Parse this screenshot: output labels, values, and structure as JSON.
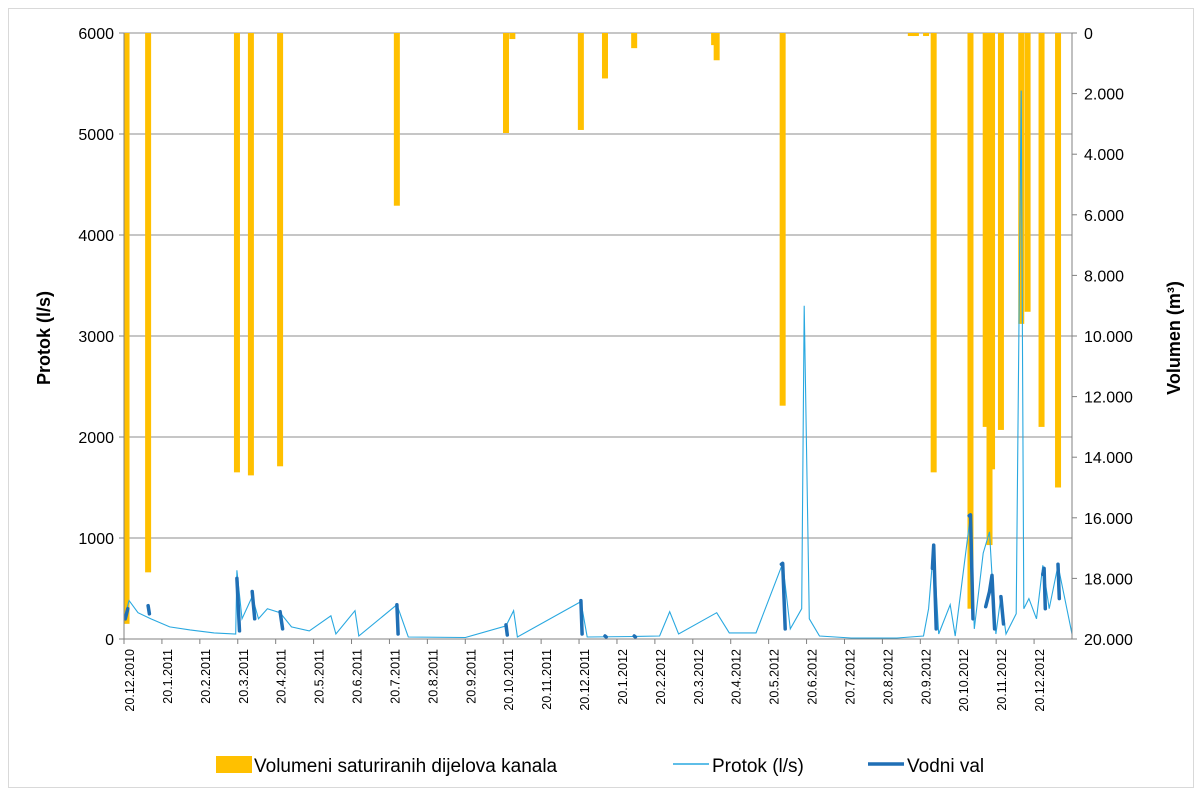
{
  "chart_data": {
    "type": "bar",
    "title": "",
    "ylabel_left": "Protok (l/s)",
    "ylabel_right": "Volumen (m³)",
    "ylim_left": [
      0,
      6000
    ],
    "ylim_right_inverted": [
      0,
      20000
    ],
    "y_left_ticks": [
      "0",
      "1000",
      "2000",
      "3000",
      "4000",
      "5000",
      "6000"
    ],
    "y_right_ticks": [
      "0",
      "2.000",
      "4.000",
      "6.000",
      "8.000",
      "10.000",
      "12.000",
      "14.000",
      "16.000",
      "18.000",
      "20.000"
    ],
    "x_start": "2010-12-20",
    "x_end": "2013-01-05",
    "x_ticks": [
      "20.12.2010",
      "20.1.2011",
      "20.2.2011",
      "20.3.2011",
      "20.4.2011",
      "20.5.2011",
      "20.6.2011",
      "20.7.2011",
      "20.8.2011",
      "20.9.2011",
      "20.10.2011",
      "20.11.2011",
      "20.12.2011",
      "20.1.2012",
      "20.2.2012",
      "20.3.2012",
      "20.4.2012",
      "20.5.2012",
      "20.6.2012",
      "20.7.2012",
      "20.8.2012",
      "20.9.2012",
      "20.10.2012",
      "20.11.2012",
      "20.12.2012"
    ],
    "grid": true,
    "legend_position": "bottom",
    "colors": {
      "volumes": "#ffc000",
      "protok": "#29a8e0",
      "vodni_val": "#1f6fb5",
      "grid": "#8c8c8c",
      "axis": "#808080"
    },
    "series": [
      {
        "name": "Volumeni saturiranih dijelova kanala",
        "type": "bar",
        "axis": "right",
        "data": [
          {
            "date": "2010-12-22",
            "value": 19500
          },
          {
            "date": "2011-01-08",
            "value": 17800
          },
          {
            "date": "2011-03-19",
            "value": 14500
          },
          {
            "date": "2011-03-30",
            "value": 14600
          },
          {
            "date": "2011-04-22",
            "value": 14300
          },
          {
            "date": "2011-07-23",
            "value": 5700
          },
          {
            "date": "2011-10-17",
            "value": 3300
          },
          {
            "date": "2011-10-22",
            "value": 200
          },
          {
            "date": "2011-12-15",
            "value": 3200
          },
          {
            "date": "2012-01-03",
            "value": 1500
          },
          {
            "date": "2012-01-26",
            "value": 500
          },
          {
            "date": "2012-03-29",
            "value": 400
          },
          {
            "date": "2012-03-31",
            "value": 900
          },
          {
            "date": "2012-05-22",
            "value": 12300
          },
          {
            "date": "2012-08-31",
            "value": 100
          },
          {
            "date": "2012-09-04",
            "value": 100
          },
          {
            "date": "2012-09-12",
            "value": 100
          },
          {
            "date": "2012-09-18",
            "value": 14500
          },
          {
            "date": "2012-10-17",
            "value": 19000
          },
          {
            "date": "2012-10-29",
            "value": 13000
          },
          {
            "date": "2012-11-01",
            "value": 16900
          },
          {
            "date": "2012-11-03",
            "value": 14400
          },
          {
            "date": "2012-11-10",
            "value": 13100
          },
          {
            "date": "2012-11-26",
            "value": 9600
          },
          {
            "date": "2012-12-01",
            "value": 9200
          },
          {
            "date": "2012-12-12",
            "value": 13000
          },
          {
            "date": "2012-12-25",
            "value": 15000
          }
        ]
      },
      {
        "name": "Protok (l/s)",
        "type": "line",
        "axis": "left",
        "data": [
          {
            "date": "2010-12-20",
            "value": 200
          },
          {
            "date": "2010-12-24",
            "value": 380
          },
          {
            "date": "2010-12-31",
            "value": 260
          },
          {
            "date": "2011-01-10",
            "value": 200
          },
          {
            "date": "2011-01-25",
            "value": 120
          },
          {
            "date": "2011-02-10",
            "value": 90
          },
          {
            "date": "2011-03-01",
            "value": 60
          },
          {
            "date": "2011-03-18",
            "value": 50
          },
          {
            "date": "2011-03-19",
            "value": 680
          },
          {
            "date": "2011-03-23",
            "value": 200
          },
          {
            "date": "2011-03-31",
            "value": 420
          },
          {
            "date": "2011-04-05",
            "value": 200
          },
          {
            "date": "2011-04-12",
            "value": 300
          },
          {
            "date": "2011-04-22",
            "value": 260
          },
          {
            "date": "2011-05-01",
            "value": 120
          },
          {
            "date": "2011-05-15",
            "value": 80
          },
          {
            "date": "2011-06-01",
            "value": 230
          },
          {
            "date": "2011-06-05",
            "value": 50
          },
          {
            "date": "2011-06-20",
            "value": 280
          },
          {
            "date": "2011-06-23",
            "value": 30
          },
          {
            "date": "2011-07-23",
            "value": 340
          },
          {
            "date": "2011-08-01",
            "value": 20
          },
          {
            "date": "2011-09-15",
            "value": 15
          },
          {
            "date": "2011-10-17",
            "value": 130
          },
          {
            "date": "2011-10-23",
            "value": 280
          },
          {
            "date": "2011-10-26",
            "value": 20
          },
          {
            "date": "2011-12-15",
            "value": 370
          },
          {
            "date": "2011-12-20",
            "value": 20
          },
          {
            "date": "2012-01-26",
            "value": 25
          },
          {
            "date": "2012-02-15",
            "value": 30
          },
          {
            "date": "2012-02-23",
            "value": 270
          },
          {
            "date": "2012-03-01",
            "value": 50
          },
          {
            "date": "2012-03-31",
            "value": 260
          },
          {
            "date": "2012-04-10",
            "value": 60
          },
          {
            "date": "2012-05-01",
            "value": 60
          },
          {
            "date": "2012-05-22",
            "value": 750
          },
          {
            "date": "2012-05-28",
            "value": 100
          },
          {
            "date": "2012-06-06",
            "value": 300
          },
          {
            "date": "2012-06-08",
            "value": 3300
          },
          {
            "date": "2012-06-12",
            "value": 200
          },
          {
            "date": "2012-06-20",
            "value": 30
          },
          {
            "date": "2012-07-15",
            "value": 10
          },
          {
            "date": "2012-08-20",
            "value": 10
          },
          {
            "date": "2012-09-10",
            "value": 30
          },
          {
            "date": "2012-09-14",
            "value": 300
          },
          {
            "date": "2012-09-18",
            "value": 920
          },
          {
            "date": "2012-09-22",
            "value": 50
          },
          {
            "date": "2012-10-01",
            "value": 340
          },
          {
            "date": "2012-10-05",
            "value": 30
          },
          {
            "date": "2012-10-17",
            "value": 1230
          },
          {
            "date": "2012-10-20",
            "value": 100
          },
          {
            "date": "2012-10-27",
            "value": 850
          },
          {
            "date": "2012-11-01",
            "value": 1060
          },
          {
            "date": "2012-11-03",
            "value": 630
          },
          {
            "date": "2012-11-06",
            "value": 50
          },
          {
            "date": "2012-11-10",
            "value": 420
          },
          {
            "date": "2012-11-14",
            "value": 50
          },
          {
            "date": "2012-11-22",
            "value": 250
          },
          {
            "date": "2012-11-26",
            "value": 5430
          },
          {
            "date": "2012-11-28",
            "value": 300
          },
          {
            "date": "2012-12-02",
            "value": 400
          },
          {
            "date": "2012-12-08",
            "value": 200
          },
          {
            "date": "2012-12-13",
            "value": 730
          },
          {
            "date": "2012-12-18",
            "value": 300
          },
          {
            "date": "2012-12-25",
            "value": 730
          },
          {
            "date": "2013-01-05",
            "value": 50
          }
        ]
      },
      {
        "name": "Vodni val",
        "type": "line",
        "axis": "left",
        "segments": [
          [
            {
              "date": "2010-12-21",
              "value": 200
            },
            {
              "date": "2010-12-23",
              "value": 300
            }
          ],
          [
            {
              "date": "2011-01-08",
              "value": 330
            },
            {
              "date": "2011-01-09",
              "value": 250
            }
          ],
          [
            {
              "date": "2011-03-19",
              "value": 600
            },
            {
              "date": "2011-03-21",
              "value": 80
            }
          ],
          [
            {
              "date": "2011-03-31",
              "value": 470
            },
            {
              "date": "2011-04-02",
              "value": 200
            }
          ],
          [
            {
              "date": "2011-04-22",
              "value": 270
            },
            {
              "date": "2011-04-24",
              "value": 100
            }
          ],
          [
            {
              "date": "2011-07-23",
              "value": 340
            },
            {
              "date": "2011-07-24",
              "value": 50
            }
          ],
          [
            {
              "date": "2011-10-17",
              "value": 140
            },
            {
              "date": "2011-10-18",
              "value": 40
            }
          ],
          [
            {
              "date": "2011-12-15",
              "value": 380
            },
            {
              "date": "2011-12-16",
              "value": 50
            }
          ],
          [
            {
              "date": "2012-01-03",
              "value": 30
            },
            {
              "date": "2012-01-04",
              "value": 20
            }
          ],
          [
            {
              "date": "2012-01-26",
              "value": 30
            },
            {
              "date": "2012-01-27",
              "value": 20
            }
          ],
          [
            {
              "date": "2012-05-21",
              "value": 740
            },
            {
              "date": "2012-05-22",
              "value": 750
            },
            {
              "date": "2012-05-24",
              "value": 100
            }
          ],
          [
            {
              "date": "2012-09-17",
              "value": 700
            },
            {
              "date": "2012-09-18",
              "value": 930
            },
            {
              "date": "2012-09-20",
              "value": 100
            }
          ],
          [
            {
              "date": "2012-10-16",
              "value": 1220
            },
            {
              "date": "2012-10-17",
              "value": 1230
            },
            {
              "date": "2012-10-19",
              "value": 200
            }
          ],
          [
            {
              "date": "2012-10-29",
              "value": 320
            },
            {
              "date": "2012-11-01",
              "value": 470
            },
            {
              "date": "2012-11-03",
              "value": 630
            },
            {
              "date": "2012-11-05",
              "value": 100
            }
          ],
          [
            {
              "date": "2012-11-10",
              "value": 420
            },
            {
              "date": "2012-11-12",
              "value": 150
            }
          ],
          [
            {
              "date": "2012-12-13",
              "value": 640
            },
            {
              "date": "2012-12-14",
              "value": 700
            },
            {
              "date": "2012-12-15",
              "value": 300
            }
          ],
          [
            {
              "date": "2012-12-25",
              "value": 740
            },
            {
              "date": "2012-12-26",
              "value": 400
            }
          ]
        ]
      }
    ]
  }
}
